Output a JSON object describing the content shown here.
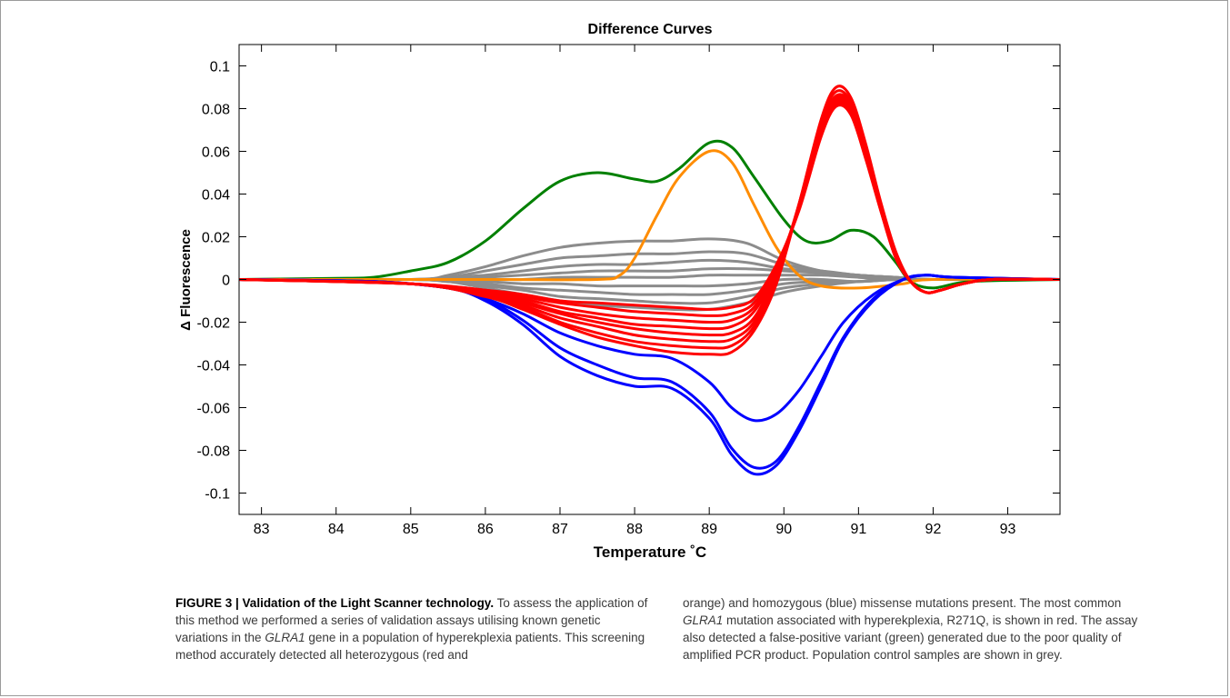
{
  "chart_data": {
    "type": "line",
    "title": "Difference Curves",
    "xlabel": "Temperature ˚C",
    "ylabel": "Δ Fluorescence",
    "xlim": [
      82.7,
      93.7
    ],
    "ylim": [
      -0.11,
      0.11
    ],
    "x_ticks": [
      "83",
      "84",
      "85",
      "86",
      "87",
      "88",
      "89",
      "90",
      "91",
      "92",
      "93"
    ],
    "y_ticks": [
      "0.1",
      "0.08",
      "0.06",
      "0.04",
      "0.02",
      "0",
      "-0.02",
      "-0.04",
      "-0.06",
      "-0.08",
      "-0.1"
    ],
    "grid": false,
    "series": [
      {
        "color": "#008000",
        "x": [
          82.7,
          84.0,
          84.5,
          85.0,
          85.5,
          86.0,
          86.5,
          87.0,
          87.5,
          88.0,
          88.3,
          88.6,
          89.0,
          89.3,
          89.6,
          90.0,
          90.3,
          90.6,
          90.9,
          91.2,
          91.5,
          91.7,
          92.0,
          92.5,
          93.7
        ],
        "y": [
          0.0,
          0.0005,
          0.001,
          0.004,
          0.008,
          0.018,
          0.033,
          0.046,
          0.05,
          0.047,
          0.046,
          0.052,
          0.064,
          0.062,
          0.048,
          0.028,
          0.018,
          0.018,
          0.023,
          0.02,
          0.008,
          -0.001,
          -0.004,
          -0.001,
          0.0
        ]
      },
      {
        "color": "#ff8c00",
        "x": [
          82.7,
          86.0,
          87.5,
          87.8,
          88.0,
          88.3,
          88.6,
          89.0,
          89.3,
          89.6,
          89.9,
          90.2,
          90.5,
          91.0,
          91.6,
          92.0,
          93.7
        ],
        "y": [
          0.0,
          0.0,
          0.0,
          0.002,
          0.01,
          0.03,
          0.048,
          0.06,
          0.055,
          0.035,
          0.015,
          0.002,
          -0.003,
          -0.004,
          -0.002,
          0.0,
          0.0
        ]
      },
      {
        "color": "#0000ff",
        "x": [
          82.7,
          84.5,
          85.5,
          86.0,
          86.5,
          87.0,
          87.5,
          88.0,
          88.5,
          89.0,
          89.3,
          89.6,
          89.9,
          90.2,
          90.5,
          90.8,
          91.2,
          91.6,
          91.9,
          92.3,
          93.7
        ],
        "y": [
          0.0,
          -0.001,
          -0.004,
          -0.01,
          -0.021,
          -0.036,
          -0.045,
          -0.05,
          -0.051,
          -0.065,
          -0.082,
          -0.091,
          -0.087,
          -0.071,
          -0.05,
          -0.028,
          -0.01,
          0.0,
          0.002,
          0.001,
          0.0
        ]
      },
      {
        "color": "#0000ff",
        "x": [
          82.7,
          84.5,
          85.5,
          86.0,
          86.5,
          87.0,
          87.5,
          88.0,
          88.5,
          89.0,
          89.3,
          89.6,
          89.9,
          90.2,
          90.5,
          90.8,
          91.2,
          91.6,
          91.9,
          92.3,
          93.7
        ],
        "y": [
          0.0,
          -0.001,
          -0.004,
          -0.009,
          -0.019,
          -0.032,
          -0.04,
          -0.046,
          -0.048,
          -0.062,
          -0.079,
          -0.088,
          -0.085,
          -0.069,
          -0.048,
          -0.027,
          -0.009,
          0.0,
          0.002,
          0.001,
          0.0
        ]
      },
      {
        "color": "#0000ff",
        "x": [
          82.7,
          84.5,
          85.5,
          86.0,
          86.5,
          87.0,
          87.5,
          88.0,
          88.5,
          89.0,
          89.3,
          89.6,
          89.9,
          90.2,
          90.5,
          90.8,
          91.2,
          91.6,
          91.9,
          92.3,
          93.7
        ],
        "y": [
          0.0,
          -0.001,
          -0.004,
          -0.009,
          -0.016,
          -0.025,
          -0.031,
          -0.035,
          -0.037,
          -0.048,
          -0.06,
          -0.066,
          -0.063,
          -0.052,
          -0.036,
          -0.02,
          -0.007,
          0.0,
          0.002,
          0.001,
          0.0
        ]
      },
      {
        "color": "#ff0000",
        "x": [
          82.7,
          85.0,
          86.0,
          86.5,
          87.0,
          87.5,
          88.0,
          88.5,
          89.0,
          89.3,
          89.6,
          89.9,
          90.2,
          90.5,
          90.7,
          90.9,
          91.1,
          91.3,
          91.5,
          91.7,
          91.9,
          92.1,
          92.4,
          92.8,
          93.7
        ],
        "y": [
          0.0,
          -0.002,
          -0.008,
          -0.014,
          -0.021,
          -0.027,
          -0.031,
          -0.034,
          -0.035,
          -0.034,
          -0.024,
          -0.002,
          0.035,
          0.075,
          0.09,
          0.085,
          0.063,
          0.036,
          0.013,
          -0.001,
          -0.006,
          -0.005,
          -0.002,
          0.0,
          0.0
        ]
      },
      {
        "color": "#ff0000",
        "x": [
          82.7,
          85.0,
          86.0,
          86.5,
          87.0,
          87.5,
          88.0,
          88.5,
          89.0,
          89.3,
          89.6,
          89.9,
          90.2,
          90.5,
          90.7,
          90.9,
          91.1,
          91.3,
          91.5,
          91.7,
          91.9,
          92.1,
          92.4,
          92.8,
          93.7
        ],
        "y": [
          0.0,
          -0.002,
          -0.008,
          -0.013,
          -0.02,
          -0.025,
          -0.029,
          -0.031,
          -0.032,
          -0.031,
          -0.022,
          0.0,
          0.035,
          0.074,
          0.088,
          0.083,
          0.062,
          0.035,
          0.012,
          -0.001,
          -0.006,
          -0.005,
          -0.002,
          0.0,
          0.0
        ]
      },
      {
        "color": "#ff0000",
        "x": [
          82.7,
          85.0,
          86.0,
          86.5,
          87.0,
          87.5,
          88.0,
          88.5,
          89.0,
          89.3,
          89.6,
          89.9,
          90.2,
          90.5,
          90.7,
          90.9,
          91.1,
          91.3,
          91.5,
          91.7,
          91.9,
          92.1,
          92.4,
          92.8,
          93.7
        ],
        "y": [
          0.0,
          -0.002,
          -0.007,
          -0.012,
          -0.018,
          -0.022,
          -0.026,
          -0.028,
          -0.029,
          -0.028,
          -0.02,
          0.002,
          0.035,
          0.072,
          0.086,
          0.082,
          0.061,
          0.035,
          0.012,
          -0.001,
          -0.006,
          -0.005,
          -0.002,
          0.0,
          0.0
        ]
      },
      {
        "color": "#ff0000",
        "x": [
          82.7,
          85.0,
          86.0,
          86.5,
          87.0,
          87.5,
          88.0,
          88.5,
          89.0,
          89.3,
          89.6,
          89.9,
          90.2,
          90.5,
          90.7,
          90.9,
          91.1,
          91.3,
          91.5,
          91.7,
          91.9,
          92.1,
          92.4,
          92.8,
          93.7
        ],
        "y": [
          0.0,
          -0.002,
          -0.007,
          -0.011,
          -0.016,
          -0.02,
          -0.023,
          -0.025,
          -0.026,
          -0.025,
          -0.018,
          0.003,
          0.034,
          0.071,
          0.085,
          0.081,
          0.06,
          0.034,
          0.012,
          -0.001,
          -0.006,
          -0.005,
          -0.002,
          0.0,
          0.0
        ]
      },
      {
        "color": "#ff0000",
        "x": [
          82.7,
          85.0,
          86.0,
          86.5,
          87.0,
          87.5,
          88.0,
          88.5,
          89.0,
          89.3,
          89.6,
          89.9,
          90.2,
          90.5,
          90.7,
          90.9,
          91.1,
          91.3,
          91.5,
          91.7,
          91.9,
          92.1,
          92.4,
          92.8,
          93.7
        ],
        "y": [
          0.0,
          -0.002,
          -0.006,
          -0.01,
          -0.015,
          -0.018,
          -0.021,
          -0.022,
          -0.023,
          -0.022,
          -0.015,
          0.004,
          0.034,
          0.07,
          0.084,
          0.08,
          0.059,
          0.033,
          0.011,
          -0.001,
          -0.006,
          -0.005,
          -0.002,
          0.0,
          0.0
        ]
      },
      {
        "color": "#ff0000",
        "x": [
          82.7,
          85.0,
          86.0,
          86.5,
          87.0,
          87.5,
          88.0,
          88.5,
          89.0,
          89.3,
          89.6,
          89.9,
          90.2,
          90.5,
          90.7,
          90.9,
          91.1,
          91.3,
          91.5,
          91.7,
          91.9,
          92.1,
          92.4,
          92.8,
          93.7
        ],
        "y": [
          0.0,
          -0.002,
          -0.006,
          -0.009,
          -0.013,
          -0.016,
          -0.018,
          -0.019,
          -0.02,
          -0.019,
          -0.013,
          0.005,
          0.033,
          0.069,
          0.083,
          0.079,
          0.058,
          0.033,
          0.011,
          -0.001,
          -0.006,
          -0.005,
          -0.002,
          0.0,
          0.0
        ]
      },
      {
        "color": "#ff0000",
        "x": [
          82.7,
          85.0,
          86.0,
          86.5,
          87.0,
          87.5,
          88.0,
          88.5,
          89.0,
          89.3,
          89.6,
          89.9,
          90.2,
          90.5,
          90.7,
          90.9,
          91.1,
          91.3,
          91.5,
          91.7,
          91.9,
          92.1,
          92.4,
          92.8,
          93.7
        ],
        "y": [
          0.0,
          -0.002,
          -0.005,
          -0.008,
          -0.011,
          -0.013,
          -0.015,
          -0.016,
          -0.017,
          -0.016,
          -0.011,
          0.006,
          0.033,
          0.068,
          0.082,
          0.078,
          0.057,
          0.032,
          0.01,
          -0.001,
          -0.006,
          -0.005,
          -0.002,
          0.0,
          0.0
        ]
      },
      {
        "color": "#ff0000",
        "x": [
          82.7,
          85.0,
          86.0,
          86.5,
          87.0,
          87.5,
          88.0,
          88.5,
          89.0,
          89.3,
          89.6,
          89.9,
          90.2,
          90.5,
          90.7,
          90.9,
          91.1,
          91.3,
          91.5,
          91.7,
          91.9,
          92.1,
          92.4,
          92.8,
          93.7
        ],
        "y": [
          0.0,
          -0.002,
          -0.005,
          -0.007,
          -0.01,
          -0.011,
          -0.012,
          -0.013,
          -0.014,
          -0.013,
          -0.009,
          0.007,
          0.032,
          0.067,
          0.081,
          0.077,
          0.056,
          0.032,
          0.01,
          -0.001,
          -0.006,
          -0.005,
          -0.002,
          0.0,
          0.0
        ]
      },
      {
        "color": "#8c8c8c",
        "x": [
          82.7,
          85.0,
          85.5,
          86.0,
          86.5,
          87.0,
          87.5,
          88.0,
          88.5,
          89.0,
          89.5,
          90.0,
          90.5,
          91.0,
          91.5,
          92.0,
          93.7
        ],
        "y": [
          0.0,
          0.0,
          0.002,
          0.006,
          0.011,
          0.015,
          0.017,
          0.018,
          0.018,
          0.019,
          0.017,
          0.009,
          0.004,
          0.002,
          0.001,
          0.0,
          0.0
        ]
      },
      {
        "color": "#8c8c8c",
        "x": [
          82.7,
          85.0,
          85.5,
          86.0,
          86.5,
          87.0,
          87.5,
          88.0,
          88.5,
          89.0,
          89.5,
          90.0,
          90.5,
          91.0,
          91.5,
          92.0,
          93.7
        ],
        "y": [
          0.0,
          0.0,
          0.001,
          0.004,
          0.007,
          0.01,
          0.011,
          0.012,
          0.012,
          0.013,
          0.012,
          0.007,
          0.004,
          0.002,
          0.001,
          0.0,
          0.0
        ]
      },
      {
        "color": "#8c8c8c",
        "x": [
          82.7,
          85.0,
          85.5,
          86.0,
          86.5,
          87.0,
          87.5,
          88.0,
          88.5,
          89.0,
          89.5,
          90.0,
          90.5,
          91.0,
          91.5,
          92.0,
          93.7
        ],
        "y": [
          0.0,
          0.0,
          0.001,
          0.002,
          0.004,
          0.006,
          0.007,
          0.007,
          0.008,
          0.009,
          0.008,
          0.005,
          0.004,
          0.002,
          0.001,
          0.0,
          0.0
        ]
      },
      {
        "color": "#8c8c8c",
        "x": [
          82.7,
          85.0,
          85.5,
          86.0,
          86.5,
          87.0,
          87.5,
          88.0,
          88.5,
          89.0,
          89.5,
          90.0,
          90.5,
          91.0,
          91.5,
          92.0,
          93.7
        ],
        "y": [
          0.0,
          0.0,
          0.0,
          0.001,
          0.002,
          0.003,
          0.004,
          0.004,
          0.004,
          0.005,
          0.005,
          0.004,
          0.003,
          0.001,
          0.0,
          0.0,
          0.0
        ]
      },
      {
        "color": "#8c8c8c",
        "x": [
          82.7,
          85.0,
          85.5,
          86.0,
          86.5,
          87.0,
          87.5,
          88.0,
          88.5,
          89.0,
          89.5,
          90.0,
          90.5,
          91.0,
          91.5,
          92.0,
          93.7
        ],
        "y": [
          0.0,
          0.0,
          0.0,
          0.0,
          0.0,
          0.001,
          0.001,
          0.001,
          0.001,
          0.002,
          0.002,
          0.002,
          0.002,
          0.001,
          0.0,
          0.0,
          0.0
        ]
      },
      {
        "color": "#8c8c8c",
        "x": [
          82.7,
          85.0,
          85.5,
          86.0,
          86.5,
          87.0,
          87.5,
          88.0,
          88.5,
          89.0,
          89.5,
          90.0,
          90.5,
          91.0,
          91.5,
          92.0,
          93.7
        ],
        "y": [
          0.0,
          0.0,
          -0.001,
          -0.001,
          -0.002,
          -0.002,
          -0.003,
          -0.003,
          -0.003,
          -0.003,
          -0.002,
          0.0,
          0.0,
          -0.001,
          0.0,
          0.0,
          0.0
        ]
      },
      {
        "color": "#8c8c8c",
        "x": [
          82.7,
          85.0,
          85.5,
          86.0,
          86.5,
          87.0,
          87.5,
          88.0,
          88.5,
          89.0,
          89.5,
          90.0,
          90.5,
          91.0,
          91.5,
          92.0,
          93.7
        ],
        "y": [
          0.0,
          0.0,
          -0.001,
          -0.002,
          -0.004,
          -0.005,
          -0.006,
          -0.007,
          -0.007,
          -0.007,
          -0.005,
          -0.002,
          -0.001,
          -0.001,
          0.0,
          0.0,
          0.0
        ]
      },
      {
        "color": "#8c8c8c",
        "x": [
          82.7,
          85.0,
          85.5,
          86.0,
          86.5,
          87.0,
          87.5,
          88.0,
          88.5,
          89.0,
          89.5,
          90.0,
          90.5,
          91.0,
          91.5,
          92.0,
          93.7
        ],
        "y": [
          0.0,
          0.0,
          -0.001,
          -0.003,
          -0.005,
          -0.008,
          -0.009,
          -0.01,
          -0.011,
          -0.011,
          -0.008,
          -0.004,
          -0.002,
          -0.001,
          0.0,
          0.0,
          0.0
        ]
      },
      {
        "color": "#8c8c8c",
        "x": [
          82.7,
          85.0,
          85.5,
          86.0,
          86.5,
          87.0,
          87.5,
          88.0,
          88.5,
          89.0,
          89.5,
          90.0,
          90.5,
          91.0,
          91.5,
          92.0,
          93.7
        ],
        "y": [
          0.0,
          0.0,
          -0.001,
          -0.004,
          -0.007,
          -0.01,
          -0.012,
          -0.013,
          -0.014,
          -0.014,
          -0.011,
          -0.006,
          -0.003,
          -0.001,
          0.0,
          0.0,
          0.0
        ]
      }
    ]
  },
  "caption": {
    "label": "FIGURE 3 | ",
    "title": "Validation of the Light Scanner technology.",
    "t1": " To assess the application of this method we performed a series of validation assays utilising known genetic variations in the ",
    "gene1": "GLRA1",
    "t2": " gene in a population of hyperekplexia patients. This screening method accurately detected all heterozygous (red and",
    "t3": "orange) and homozygous (blue) missense mutations present. The most common ",
    "gene2": "GLRA1",
    "t4": " mutation associated with hyperekplexia, R271Q, is shown in red. The assay also detected a false-positive variant (green) generated due to the poor quality of amplified PCR product. Population control samples are shown in grey."
  }
}
